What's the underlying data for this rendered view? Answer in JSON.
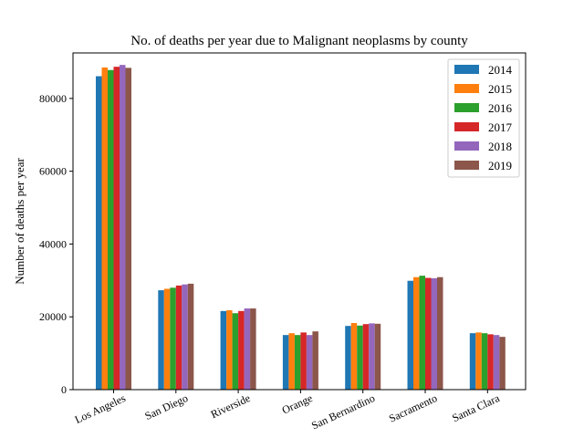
{
  "chart_data": {
    "type": "bar",
    "title": "No. of deaths per year due to Malignant neoplasms by county",
    "xlabel": "",
    "ylabel": "Number of deaths per year",
    "ylim": [
      0,
      92500
    ],
    "yticks": [
      0,
      20000,
      40000,
      60000,
      80000
    ],
    "ytick_labels": [
      "0",
      "20000",
      "40000",
      "60000",
      "80000"
    ],
    "categories": [
      "Los Angeles",
      "San Diego",
      "Riverside",
      "Orange",
      "San Bernardino",
      "Sacramento",
      "Santa Clara"
    ],
    "grid": false,
    "legend_position": "top-right",
    "series": [
      {
        "name": "2014",
        "color": "#1f77b4",
        "values": [
          86100,
          27300,
          21600,
          15000,
          17500,
          29900,
          15500
        ]
      },
      {
        "name": "2015",
        "color": "#ff7f0e",
        "values": [
          88500,
          27700,
          21800,
          15500,
          18300,
          30900,
          15700
        ]
      },
      {
        "name": "2016",
        "color": "#2ca02c",
        "values": [
          87800,
          28000,
          21000,
          15000,
          17600,
          31300,
          15500
        ]
      },
      {
        "name": "2017",
        "color": "#d62728",
        "values": [
          88700,
          28600,
          21600,
          15700,
          18000,
          30700,
          15200
        ]
      },
      {
        "name": "2018",
        "color": "#9467bd",
        "values": [
          89200,
          28900,
          22300,
          15000,
          18200,
          30600,
          15000
        ]
      },
      {
        "name": "2019",
        "color": "#8c564b",
        "values": [
          88400,
          29100,
          22300,
          16000,
          18100,
          30900,
          14500
        ]
      }
    ]
  }
}
